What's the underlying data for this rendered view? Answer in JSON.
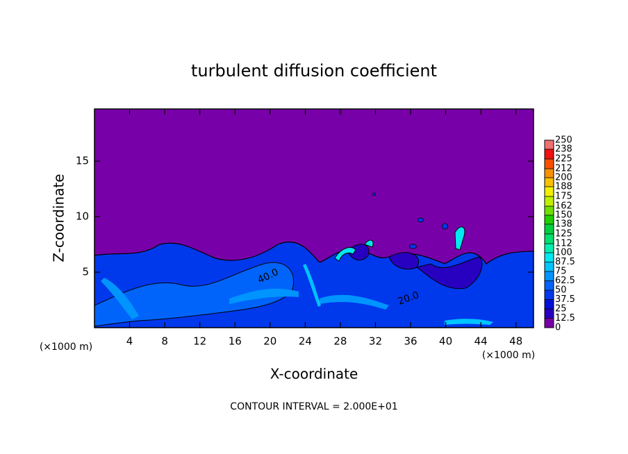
{
  "chart_data": {
    "type": "contour",
    "title": "turbulent diffusion coefficient",
    "x_label": "X-coordinate",
    "y_label": "Z-coordinate",
    "x_unit_label": "(×1000 m)",
    "annotation": "CONTOUR INTERVAL = 2.000E+01",
    "contour_labels": [
      "40.0",
      "20.0"
    ],
    "xlim": [
      0,
      50
    ],
    "xticks": [
      4,
      8,
      12,
      16,
      20,
      24,
      28,
      32,
      36,
      40,
      44,
      48
    ],
    "ylim": [
      0,
      19.7
    ],
    "yticks": [
      5,
      10,
      15
    ],
    "colorbar": {
      "levels": [
        0,
        12.5,
        25,
        37.5,
        50,
        62.5,
        75,
        87.5,
        100,
        112,
        125,
        138,
        150,
        162,
        175,
        188,
        200,
        212,
        225,
        238,
        250
      ],
      "colors": [
        "#7800a8",
        "#2800c0",
        "#0010d8",
        "#0038ec",
        "#0064fa",
        "#0094ff",
        "#00c4ff",
        "#00e8f0",
        "#00f0b0",
        "#00e070",
        "#00d040",
        "#20d000",
        "#70e000",
        "#c0f000",
        "#f0f000",
        "#f8c000",
        "#f89000",
        "#f85000",
        "#f01010",
        "#f07070"
      ]
    }
  }
}
